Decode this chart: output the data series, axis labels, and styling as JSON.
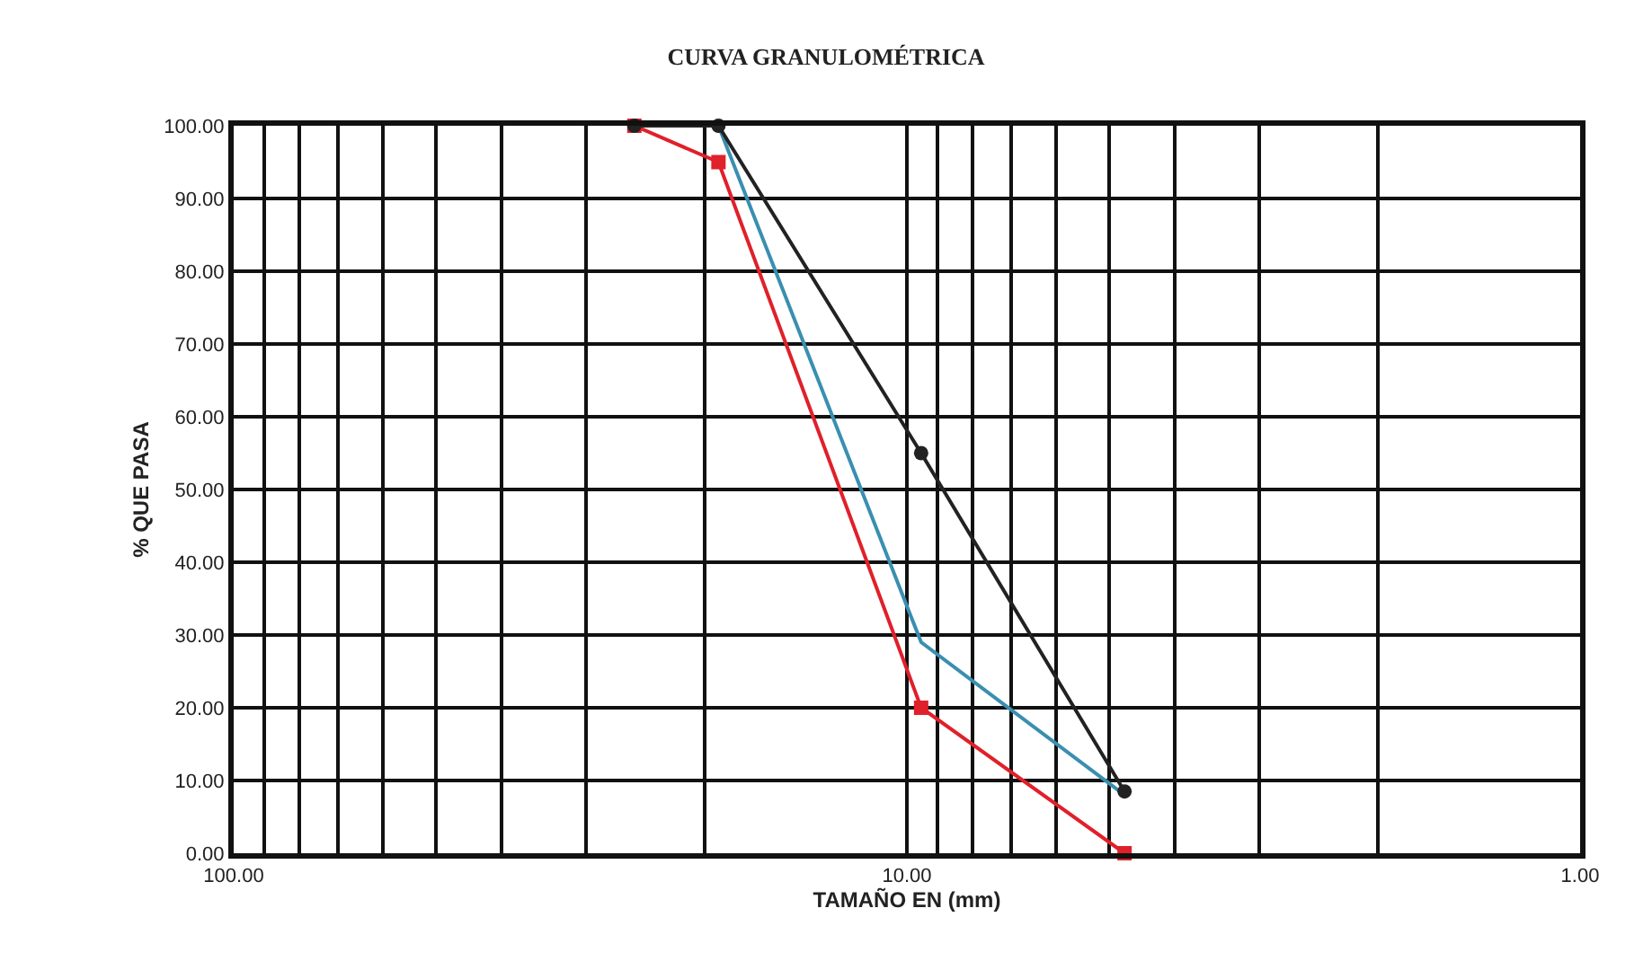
{
  "chart_data": {
    "type": "line",
    "title": "CURVA GRANULOMÉTRICA",
    "xlabel": "TAMAÑO EN (mm)",
    "ylabel": "% QUE PASA",
    "x": [
      25.4,
      19.05,
      9.525,
      4.75
    ],
    "series": [
      {
        "color": "#222222",
        "values": [
          100,
          100,
          55,
          8.5
        ],
        "marker": "circle"
      },
      {
        "color": "#3a8fb0",
        "values": [
          null,
          100,
          29,
          8
        ],
        "marker": "none"
      },
      {
        "color": "#e0202a",
        "values": [
          100,
          95,
          20,
          0
        ],
        "marker": "square"
      }
    ],
    "log": "x",
    "xlim": [
      100,
      1
    ],
    "ylim": [
      0,
      100
    ],
    "xticks": [
      {
        "value": 100,
        "label": "100.00"
      },
      {
        "value": 90,
        "label": null
      },
      {
        "value": 80,
        "label": null
      },
      {
        "value": 70,
        "label": null
      },
      {
        "value": 60,
        "label": null
      },
      {
        "value": 50,
        "label": null
      },
      {
        "value": 40,
        "label": null
      },
      {
        "value": 30,
        "label": null
      },
      {
        "value": 20,
        "label": null
      },
      {
        "value": 10,
        "label": "10.00"
      },
      {
        "value": 9,
        "label": null
      },
      {
        "value": 8,
        "label": null
      },
      {
        "value": 7,
        "label": null
      },
      {
        "value": 6,
        "label": null
      },
      {
        "value": 5,
        "label": null
      },
      {
        "value": 4,
        "label": null
      },
      {
        "value": 3,
        "label": null
      },
      {
        "value": 2,
        "label": null
      },
      {
        "value": 1,
        "label": "1.00"
      }
    ],
    "yticks": [
      {
        "value": 0,
        "label": "0.00"
      },
      {
        "value": 10,
        "label": "10.00"
      },
      {
        "value": 20,
        "label": "20.00"
      },
      {
        "value": 30,
        "label": "30.00"
      },
      {
        "value": 40,
        "label": "40.00"
      },
      {
        "value": 50,
        "label": "50.00"
      },
      {
        "value": 60,
        "label": "60.00"
      },
      {
        "value": 70,
        "label": "70.00"
      },
      {
        "value": 80,
        "label": "80.00"
      },
      {
        "value": 90,
        "label": "90.00"
      },
      {
        "value": 100,
        "label": "100.00"
      }
    ],
    "grid": true,
    "line_style": "solid"
  }
}
